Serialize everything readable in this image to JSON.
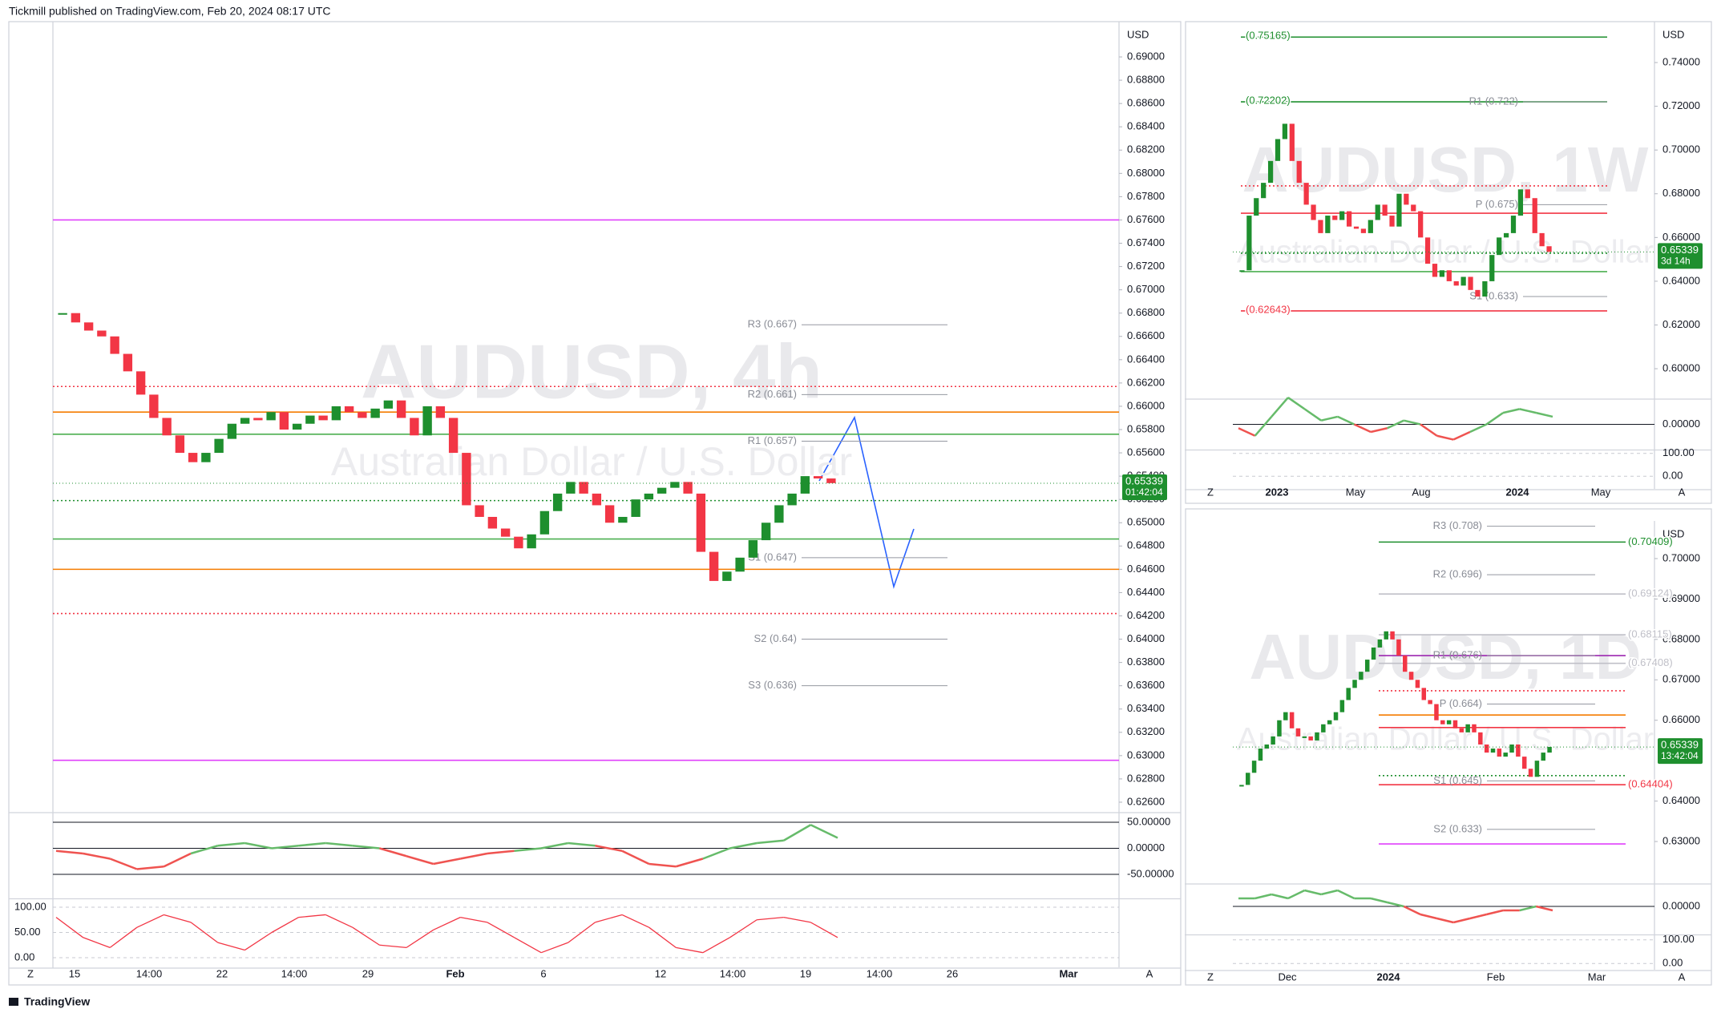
{
  "header": {
    "publisher": "Tickmill published on TradingView.com, Feb 20, 2024 08:17 UTC"
  },
  "footer": {
    "brand": "TradingView"
  },
  "candle_colors": {
    "up": "#1e8f2e",
    "down": "#f23645"
  },
  "panels": [
    {
      "symbol_watermark": "AUDUSD, 4h",
      "description_watermark": "Australian Dollar / U.S. Dollar",
      "currency": "USD",
      "ylim": [
        0.62531,
        0.69303
      ],
      "yticks": [
        {
          "value": 0.626,
          "label": "0.62600"
        },
        {
          "value": 0.628,
          "label": "0.62800"
        },
        {
          "value": 0.63,
          "label": "0.63000"
        },
        {
          "value": 0.632,
          "label": "0.63200"
        },
        {
          "value": 0.634,
          "label": "0.63400"
        },
        {
          "value": 0.636,
          "label": "0.63600"
        },
        {
          "value": 0.638,
          "label": "0.63800"
        },
        {
          "value": 0.64,
          "label": "0.64000"
        },
        {
          "value": 0.642,
          "label": "0.64200"
        },
        {
          "value": 0.644,
          "label": "0.64400"
        },
        {
          "value": 0.646,
          "label": "0.64600"
        },
        {
          "value": 0.648,
          "label": "0.64800"
        },
        {
          "value": 0.65,
          "label": "0.65000"
        },
        {
          "value": 0.652,
          "label": "0.65200"
        },
        {
          "value": 0.654,
          "label": "0.65400"
        },
        {
          "value": 0.656,
          "label": "0.65600"
        },
        {
          "value": 0.658,
          "label": "0.65800"
        },
        {
          "value": 0.66,
          "label": "0.66000"
        },
        {
          "value": 0.662,
          "label": "0.66200"
        },
        {
          "value": 0.664,
          "label": "0.66400"
        },
        {
          "value": 0.666,
          "label": "0.66600"
        },
        {
          "value": 0.668,
          "label": "0.66800"
        },
        {
          "value": 0.67,
          "label": "0.67000"
        },
        {
          "value": 0.672,
          "label": "0.67200"
        },
        {
          "value": 0.674,
          "label": "0.67400"
        },
        {
          "value": 0.676,
          "label": "0.67600"
        },
        {
          "value": 0.678,
          "label": "0.67800"
        },
        {
          "value": 0.68,
          "label": "0.68000"
        },
        {
          "value": 0.682,
          "label": "0.68200"
        },
        {
          "value": 0.684,
          "label": "0.68400"
        },
        {
          "value": 0.686,
          "label": "0.68600"
        },
        {
          "value": 0.688,
          "label": "0.68800"
        },
        {
          "value": 0.69,
          "label": "0.69000"
        }
      ],
      "closes": [
        0.668,
        0.6672,
        0.6665,
        0.666,
        0.6645,
        0.663,
        0.661,
        0.659,
        0.6575,
        0.656,
        0.6552,
        0.656,
        0.6572,
        0.6585,
        0.659,
        0.6588,
        0.6595,
        0.658,
        0.6585,
        0.6592,
        0.6588,
        0.66,
        0.6595,
        0.659,
        0.6598,
        0.6605,
        0.659,
        0.6575,
        0.66,
        0.659,
        0.656,
        0.6515,
        0.6505,
        0.6495,
        0.6488,
        0.6478,
        0.649,
        0.651,
        0.6525,
        0.6535,
        0.6525,
        0.6515,
        0.65,
        0.6505,
        0.652,
        0.6525,
        0.653,
        0.6535,
        0.6525,
        0.6475,
        0.645,
        0.6458,
        0.647,
        0.6485,
        0.65,
        0.6515,
        0.6525,
        0.654,
        0.6538,
        0.6534
      ],
      "last_price": 0.65339,
      "countdown": "01:42:04",
      "levels": [
        {
          "value": 0.676,
          "color": "#e040fb"
        },
        {
          "value": 0.6296,
          "color": "#e040fb"
        },
        {
          "value": 0.6617,
          "color": "#f23645",
          "dotted": true
        },
        {
          "value": 0.6595,
          "color": "#f57c00"
        },
        {
          "value": 0.6576,
          "color": "#4caf50"
        },
        {
          "value": 0.6519,
          "color": "#1e8f2e",
          "dotted": true
        },
        {
          "value": 0.6486,
          "color": "#4caf50"
        },
        {
          "value": 0.646,
          "color": "#f57c00"
        },
        {
          "value": 0.6422,
          "color": "#f23645",
          "dotted": true
        }
      ],
      "pivots": [
        {
          "value": 0.667,
          "label": "R3 (0.667)"
        },
        {
          "value": 0.661,
          "label": "R2 (0.661)"
        },
        {
          "value": 0.657,
          "label": "R1 (0.657)"
        },
        {
          "value": 0.647,
          "label": "S1 (0.647)"
        },
        {
          "value": 0.64,
          "label": "S2 (0.64)"
        },
        {
          "value": 0.636,
          "label": "S3 (0.636)"
        }
      ],
      "time_labels": [
        "15",
        "14:00",
        "22",
        "14:00",
        "29",
        "Feb",
        "6",
        "12",
        "14:00",
        "19",
        "14:00",
        "26",
        "Mar"
      ],
      "scale_buttons": [
        "Z",
        "A"
      ],
      "osc1": {
        "ylim": [
          -94.6,
          62.3
        ],
        "yticks": [
          {
            "value": 50,
            "label": "50.00000"
          },
          {
            "value": 0,
            "label": "0.00000"
          },
          {
            "value": -50,
            "label": "-50.00000"
          }
        ],
        "values": [
          -5,
          -10,
          -20,
          -40,
          -35,
          -10,
          5,
          10,
          0,
          5,
          10,
          5,
          0,
          -15,
          -30,
          -20,
          -10,
          -5,
          0,
          10,
          5,
          -5,
          -30,
          -35,
          -20,
          0,
          10,
          15,
          45,
          20
        ]
      },
      "osc2": {
        "ylim": [
          -15.9,
          114.3
        ],
        "yticks": [
          {
            "value": 100,
            "label": "100.00"
          },
          {
            "value": 50,
            "label": "50.00"
          },
          {
            "value": 0,
            "label": "0.00"
          }
        ],
        "values": [
          80,
          40,
          20,
          60,
          85,
          70,
          30,
          15,
          50,
          80,
          85,
          60,
          25,
          20,
          55,
          80,
          70,
          40,
          10,
          30,
          70,
          85,
          60,
          20,
          10,
          40,
          75,
          80,
          70,
          40
        ]
      }
    },
    {
      "symbol_watermark": "AUDUSD, 1W",
      "description_watermark": "Australian Dollar / U.S. Dollar",
      "currency": "USD",
      "ylim": [
        0.5872,
        0.7587
      ],
      "yticks": [
        {
          "value": 0.6,
          "label": "0.60000"
        },
        {
          "value": 0.62,
          "label": "0.62000"
        },
        {
          "value": 0.64,
          "label": "0.64000"
        },
        {
          "value": 0.66,
          "label": "0.66000"
        },
        {
          "value": 0.68,
          "label": "0.68000"
        },
        {
          "value": 0.7,
          "label": "0.70000"
        },
        {
          "value": 0.72,
          "label": "0.72000"
        },
        {
          "value": 0.74,
          "label": "0.74000"
        }
      ],
      "closes": [
        0.645,
        0.67,
        0.678,
        0.685,
        0.695,
        0.705,
        0.712,
        0.695,
        0.685,
        0.675,
        0.668,
        0.662,
        0.67,
        0.668,
        0.672,
        0.665,
        0.664,
        0.662,
        0.668,
        0.675,
        0.67,
        0.665,
        0.68,
        0.675,
        0.672,
        0.66,
        0.648,
        0.642,
        0.645,
        0.64,
        0.638,
        0.642,
        0.636,
        0.633,
        0.64,
        0.652,
        0.66,
        0.662,
        0.67,
        0.682,
        0.678,
        0.662,
        0.656,
        0.6534
      ],
      "last_price": 0.65339,
      "countdown": "3d 14h",
      "levels": [
        {
          "value": 0.75165,
          "color": "#1e8f2e",
          "label": "(0.75165)"
        },
        {
          "value": 0.72202,
          "color": "#1e8f2e",
          "label": "(0.72202)"
        },
        {
          "value": 0.62643,
          "color": "#f23645",
          "label": "(0.62643)"
        },
        {
          "value": 0.6836,
          "color": "#f23645",
          "dotted": true
        },
        {
          "value": 0.6711,
          "color": "#f23645"
        },
        {
          "value": 0.6528,
          "color": "#1e8f2e",
          "dotted": true
        },
        {
          "value": 0.6444,
          "color": "#4caf50"
        }
      ],
      "pivots": [
        {
          "value": 0.722,
          "label": "R1 (0.722)"
        },
        {
          "value": 0.675,
          "label": "P (0.675)"
        },
        {
          "value": 0.633,
          "label": "S1 (0.633)"
        }
      ],
      "time_labels": [
        "2023",
        "May",
        "Aug",
        "2024",
        "May"
      ],
      "scale_buttons": [
        "Z",
        "A"
      ],
      "osc1": {
        "ylim": [
          -0.0064,
          0.0068
        ],
        "yticks": [
          {
            "value": 0,
            "label": "0.00000"
          }
        ],
        "values": [
          -0.001,
          -0.003,
          0.002,
          0.007,
          0.004,
          0.001,
          0.002,
          0,
          -0.002,
          -0.001,
          0.001,
          0,
          -0.003,
          -0.004,
          -0.002,
          0,
          0.003,
          0.004,
          0.003,
          0.002
        ]
      },
      "osc2": {
        "ylim": [
          -48.4,
          109.7
        ],
        "yticks": [
          {
            "value": 100,
            "label": "100.00"
          },
          {
            "value": 0,
            "label": "0.00"
          }
        ]
      }
    },
    {
      "symbol_watermark": "AUDUSD, 1D",
      "description_watermark": "Australian Dollar / U.S. Dollar",
      "currency": "USD",
      "ylim": [
        0.62009,
        0.70932
      ],
      "yticks": [
        {
          "value": 0.63,
          "label": "0.63000"
        },
        {
          "value": 0.64,
          "label": "0.64000"
        },
        {
          "value": 0.66,
          "label": "0.66000"
        },
        {
          "value": 0.67,
          "label": "0.67000"
        },
        {
          "value": 0.68,
          "label": "0.68000"
        },
        {
          "value": 0.69,
          "label": "0.69000"
        },
        {
          "value": 0.7,
          "label": "0.70000"
        }
      ],
      "closes": [
        0.644,
        0.647,
        0.65,
        0.653,
        0.654,
        0.656,
        0.66,
        0.662,
        0.658,
        0.656,
        0.656,
        0.655,
        0.657,
        0.659,
        0.66,
        0.662,
        0.665,
        0.668,
        0.67,
        0.672,
        0.675,
        0.678,
        0.68,
        0.682,
        0.68,
        0.676,
        0.672,
        0.67,
        0.668,
        0.665,
        0.664,
        0.66,
        0.659,
        0.66,
        0.658,
        0.657,
        0.659,
        0.657,
        0.654,
        0.652,
        0.653,
        0.651,
        0.652,
        0.654,
        0.651,
        0.648,
        0.646,
        0.65,
        0.652,
        0.6534
      ],
      "last_price": 0.65339,
      "countdown": "13:42:04",
      "levels": [
        {
          "value": 0.70409,
          "color": "#1e8f2e",
          "label": "(0.70409)"
        },
        {
          "value": 0.69124,
          "color": "#c0c0c8",
          "label": "(0.69124)"
        },
        {
          "value": 0.68115,
          "color": "#c0c0c8",
          "label": "(0.68115)"
        },
        {
          "value": 0.67408,
          "color": "#c0c0c8",
          "label": "(0.67408)"
        },
        {
          "value": 0.64404,
          "color": "#f23645",
          "label": "(0.64404)"
        },
        {
          "value": 0.6673,
          "color": "#f23645",
          "dotted": true
        },
        {
          "value": 0.6582,
          "color": "#f23645"
        },
        {
          "value": 0.6613,
          "color": "#f57c00"
        },
        {
          "value": 0.6463,
          "color": "#1e8f2e",
          "dotted": true
        },
        {
          "value": 0.676,
          "color": "#9c27b0"
        },
        {
          "value": 0.6294,
          "color": "#e040fb"
        }
      ],
      "pivots": [
        {
          "value": 0.708,
          "label": "R3 (0.708)"
        },
        {
          "value": 0.696,
          "label": "R2 (0.696)"
        },
        {
          "value": 0.676,
          "label": "R1 (0.676)"
        },
        {
          "value": 0.664,
          "label": "P (0.664)"
        },
        {
          "value": 0.645,
          "label": "S1 (0.645)"
        },
        {
          "value": 0.633,
          "label": "S2 (0.633)"
        }
      ],
      "time_labels": [
        "Dec",
        "2024",
        "Feb",
        "Mar"
      ],
      "scale_buttons": [
        "Z",
        "A"
      ],
      "osc1": {
        "ylim": [
          -0.0068,
          0.0058
        ],
        "yticks": [
          {
            "value": 0,
            "label": "0.00000"
          }
        ],
        "values": [
          0.002,
          0.002,
          0.003,
          0.002,
          0.004,
          0.003,
          0.004,
          0.002,
          0.002,
          0.001,
          0,
          -0.002,
          -0.003,
          -0.004,
          -0.003,
          -0.002,
          -0.001,
          -0.001,
          0,
          -0.001
        ]
      },
      "osc2": {
        "ylim": [
          -19.4,
          119.4
        ],
        "yticks": [
          {
            "value": 100,
            "label": "100.00"
          },
          {
            "value": 0,
            "label": "0.00"
          }
        ]
      }
    }
  ]
}
